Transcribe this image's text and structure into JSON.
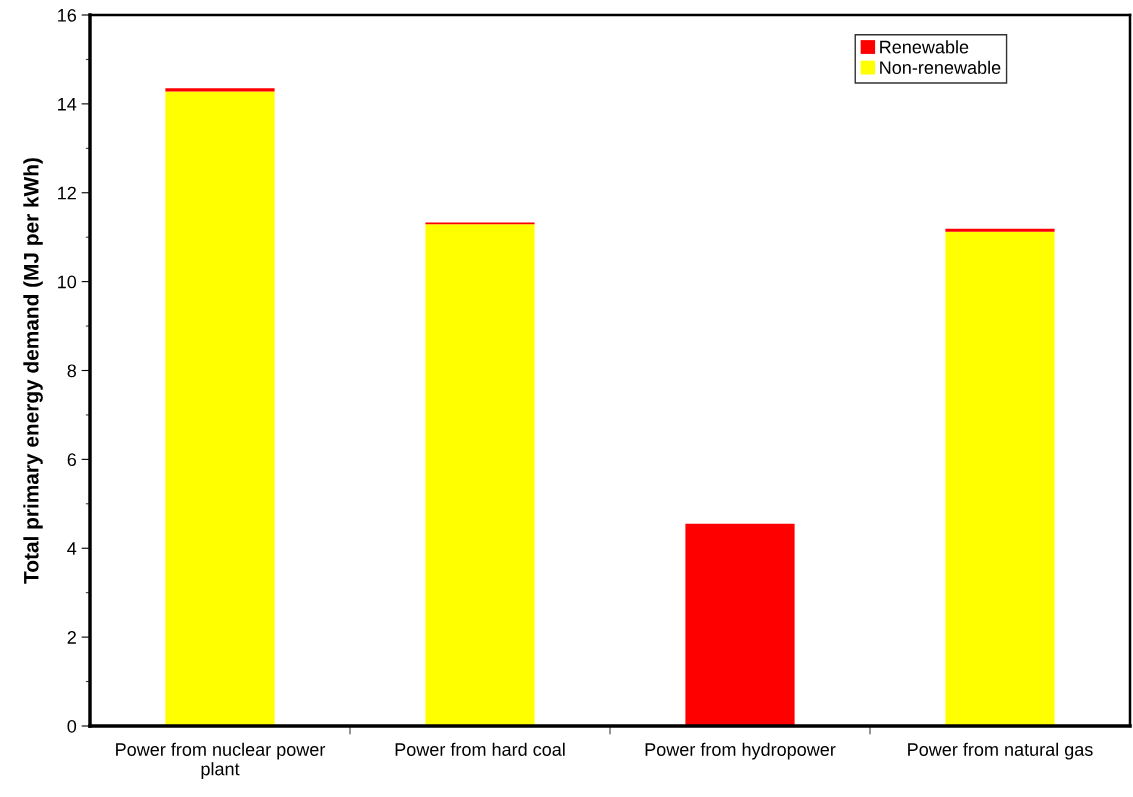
{
  "chart_data": {
    "type": "bar",
    "stacked": true,
    "ylabel": "Total primary energy demand (MJ per kWh)",
    "categories": [
      "Power from nuclear power plant",
      "Power from hard coal",
      "Power from hydropower",
      "Power from natural gas"
    ],
    "series": [
      {
        "name": "Non-renewable",
        "color": "#ffff00",
        "values": [
          14.28,
          11.29,
          0,
          11.12
        ]
      },
      {
        "name": "Renewable",
        "color": "#ff0000",
        "values": [
          0.07,
          0.04,
          4.55,
          0.07
        ]
      }
    ],
    "ylim": [
      0,
      16
    ],
    "yticks": [
      0,
      2,
      4,
      6,
      8,
      10,
      12,
      14,
      16
    ],
    "grid": false,
    "legend": "top right"
  }
}
